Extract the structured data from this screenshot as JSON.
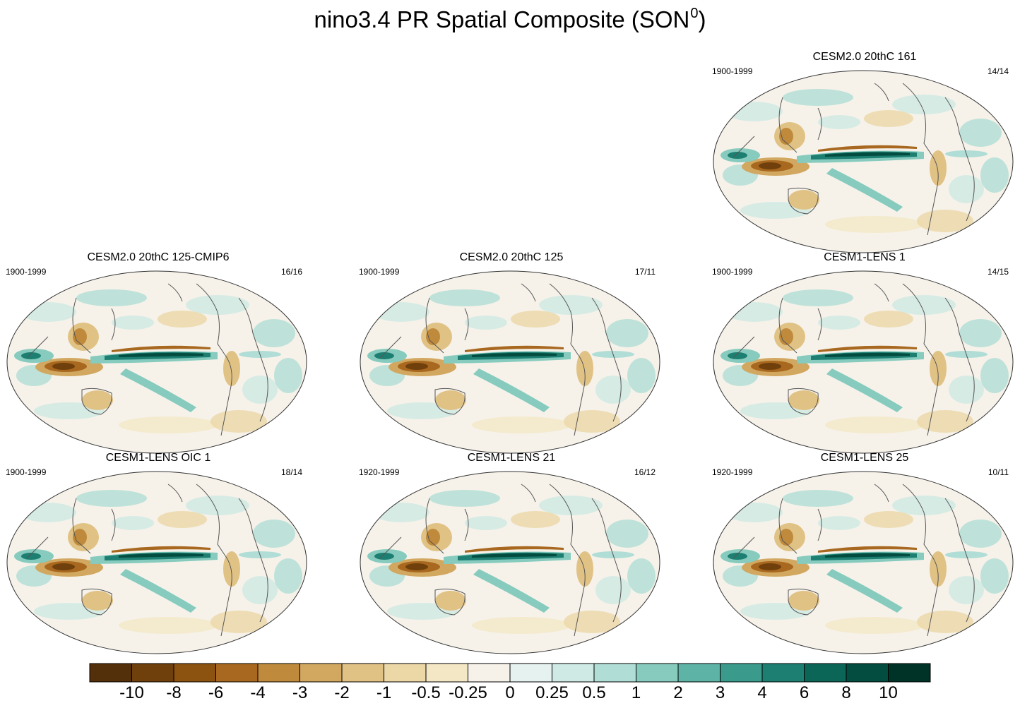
{
  "title": {
    "main": "nino3.4 PR Spatial Composite (SON",
    "superscript": "0",
    "close": ")"
  },
  "panels": [
    {
      "title": "CESM2.0 20thC 161",
      "years": "1900-1999",
      "count": "14/14",
      "row": 0,
      "col": 2
    },
    {
      "title": "CESM2.0 20thC 125-CMIP6",
      "years": "1900-1999",
      "count": "16/16",
      "row": 1,
      "col": 0
    },
    {
      "title": "CESM2.0 20thC 125",
      "years": "1900-1999",
      "count": "17/11",
      "row": 1,
      "col": 1
    },
    {
      "title": "CESM1-LENS 1",
      "years": "1900-1999",
      "count": "14/15",
      "row": 1,
      "col": 2
    },
    {
      "title": "CESM1-LENS OIC 1",
      "years": "1900-1999",
      "count": "18/14",
      "row": 2,
      "col": 0
    },
    {
      "title": "CESM1-LENS 21",
      "years": "1920-1999",
      "count": "16/12",
      "row": 2,
      "col": 1
    },
    {
      "title": "CESM1-LENS 25",
      "years": "1920-1999",
      "count": "10/11",
      "row": 2,
      "col": 2
    }
  ],
  "colorbar": {
    "labels": [
      "-10",
      "-8",
      "-6",
      "-4",
      "-3",
      "-2",
      "-1",
      "-0.5",
      "-0.25",
      "0",
      "0.25",
      "0.5",
      "1",
      "2",
      "3",
      "4",
      "6",
      "8",
      "10"
    ],
    "colors": [
      "#54300a",
      "#6f3f0c",
      "#8c520f",
      "#a8681f",
      "#c08a3c",
      "#d2a760",
      "#e1c285",
      "#ecd7a6",
      "#f4e7c6",
      "#f6f2ea",
      "#e6f2ef",
      "#cfe9e4",
      "#b0ddd5",
      "#86cbbe",
      "#5db3a5",
      "#3a9b8c",
      "#1d7f71",
      "#0b6657",
      "#034c40",
      "#003328"
    ]
  },
  "map_colors": {
    "ocean": "#f6f2ea",
    "outline": "#333333",
    "coast": "#555555"
  }
}
